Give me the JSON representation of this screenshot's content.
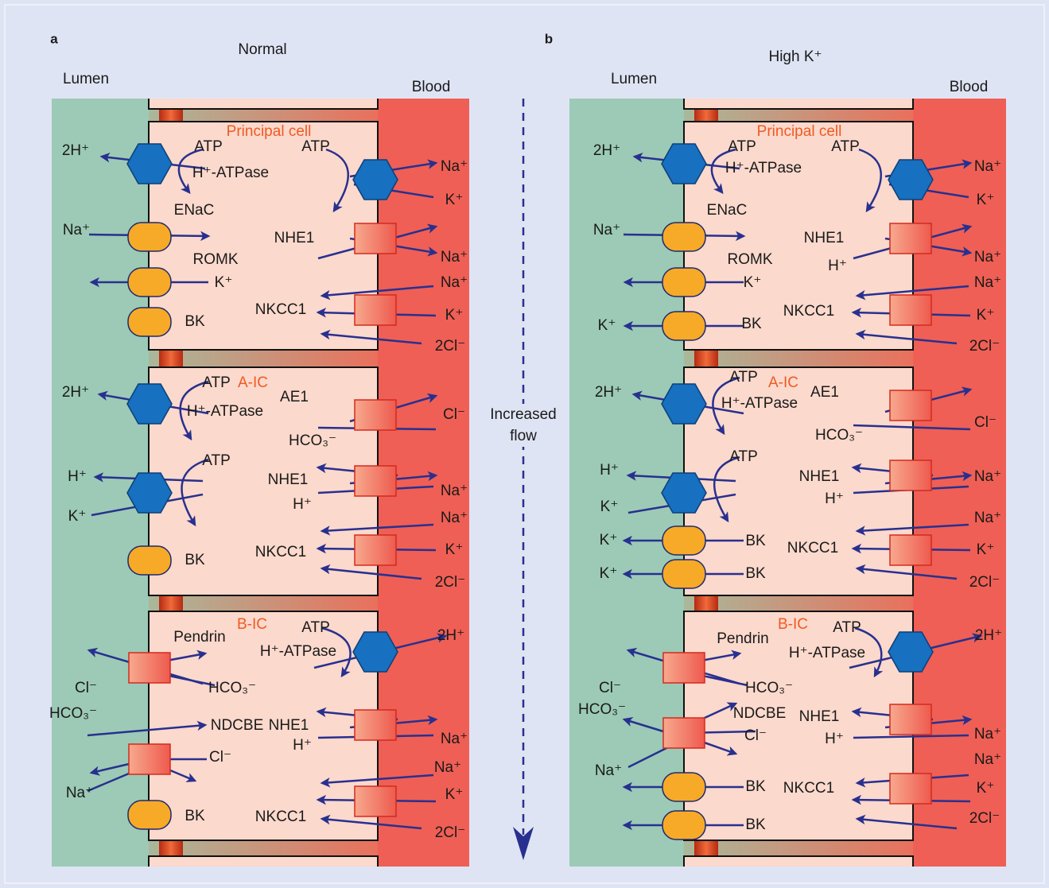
{
  "panels": [
    {
      "letter": "a",
      "title": "Normal",
      "lumen": "Lumen",
      "blood": "Blood",
      "cells": [
        "Principal cell",
        "A-IC",
        "B-IC"
      ],
      "labels": [
        "2H⁺",
        "ATP",
        "ATP",
        "H⁺-ATPase",
        "Na⁺",
        "K⁺",
        "ENaC",
        "Na⁺",
        "NHE1",
        "Na⁺",
        "ROMK",
        "K⁺",
        "Na⁺",
        "NKCC1",
        "K⁺",
        "BK",
        "2Cl⁻",
        "2H⁺",
        "ATP",
        "AE1",
        "H⁺-ATPase",
        "Cl⁻",
        "HCO₃⁻",
        "ATP",
        "H⁺",
        "NHE1",
        "Na⁺",
        "H⁺",
        "K⁺",
        "Na⁺",
        "NKCC1",
        "K⁺",
        "BK",
        "2Cl⁻",
        "ATP",
        "2H⁺",
        "Pendrin",
        "H⁺-ATPase",
        "Cl⁻",
        "HCO₃⁻",
        "HCO₃⁻",
        "NDCBE",
        "NHE1",
        "H⁺",
        "Na⁺",
        "Cl⁻",
        "Na⁺",
        "Na⁺",
        "K⁺",
        "BK",
        "NKCC1",
        "2Cl⁻"
      ]
    },
    {
      "letter": "b",
      "title": "High K⁺",
      "lumen": "Lumen",
      "blood": "Blood",
      "cells": [
        "Principal cell",
        "A-IC",
        "B-IC"
      ],
      "labels": [
        "2H⁺",
        "ATP",
        "ATP",
        "H⁺-ATPase",
        "Na⁺",
        "K⁺",
        "ENaC",
        "Na⁺",
        "NHE1",
        "Na⁺",
        "ROMK",
        "H⁺",
        "K⁺",
        "Na⁺",
        "NKCC1",
        "K⁺",
        "BK",
        "K⁺",
        "2Cl⁻",
        "ATP",
        "2H⁺",
        "AE1",
        "H⁺-ATPase",
        "Cl⁻",
        "HCO₃⁻",
        "ATP",
        "H⁺",
        "NHE1",
        "Na⁺",
        "H⁺",
        "K⁺",
        "Na⁺",
        "K⁺",
        "BK",
        "NKCC1",
        "K⁺",
        "K⁺",
        "BK",
        "2Cl⁻",
        "ATP",
        "2H⁺",
        "Pendrin",
        "H⁺-ATPase",
        "Cl⁻",
        "HCO₃⁻",
        "HCO₃⁻",
        "NDCBE",
        "NHE1",
        "Na⁺",
        "Cl⁻",
        "H⁺",
        "Na⁺",
        "Na⁺",
        "BK",
        "NKCC1",
        "K⁺",
        "2Cl⁻",
        "BK"
      ]
    }
  ],
  "flow_label": "Increased flow"
}
